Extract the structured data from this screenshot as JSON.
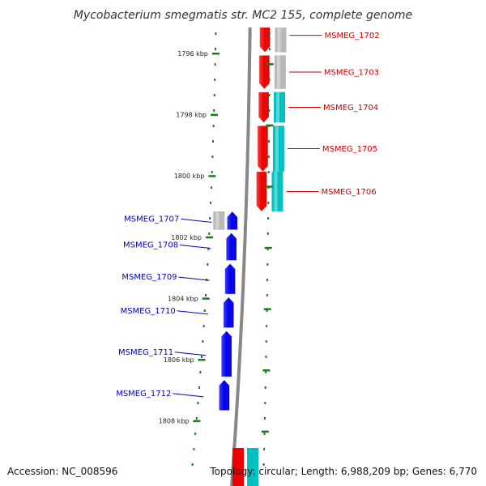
{
  "title": "Mycobacterium smegmatis str. MC2 155, complete genome",
  "footer": {
    "accession": "Accession: NC_008596",
    "summary": "Topology: circular; Length: 6,988,209 bp; Genes: 6,770"
  },
  "colors": {
    "background": "#ffffff",
    "backbone": "#888888",
    "ruler": "#1e7a1e",
    "forward_label": "#cc0000",
    "reverse_label": "#0000bb",
    "forward_gene": "#ee0000",
    "reverse_gene": "#0000ee",
    "cds_gray": "#b8b8b8",
    "cds_cyan": "#00c0c0"
  },
  "ticks": [
    {
      "label": "1796 kbp",
      "kbp": 1796
    },
    {
      "label": "1798 kbp",
      "kbp": 1798
    },
    {
      "label": "1800 kbp",
      "kbp": 1800
    },
    {
      "label": "1802 kbp",
      "kbp": 1802
    },
    {
      "label": "1804 kbp",
      "kbp": 1804
    },
    {
      "label": "1806 kbp",
      "kbp": 1806
    },
    {
      "label": "1808 kbp",
      "kbp": 1808
    }
  ],
  "genes": [
    {
      "name": "MSMEG_1702",
      "strand": "forward",
      "start_kbp": 1795.6,
      "end_kbp": 1796.7,
      "feature": "gray"
    },
    {
      "name": "MSMEG_1703",
      "strand": "forward",
      "start_kbp": 1796.8,
      "end_kbp": 1797.9,
      "feature": "gray"
    },
    {
      "name": "MSMEG_1704",
      "strand": "forward",
      "start_kbp": 1798.0,
      "end_kbp": 1799.0,
      "feature": "cyan"
    },
    {
      "name": "MSMEG_1705",
      "strand": "forward",
      "start_kbp": 1799.1,
      "end_kbp": 1800.6,
      "feature": "cyan"
    },
    {
      "name": "MSMEG_1706",
      "strand": "forward",
      "start_kbp": 1800.6,
      "end_kbp": 1801.9,
      "feature": "cyan"
    },
    {
      "name": "MSMEG_1707",
      "strand": "reverse",
      "start_kbp": 1801.9,
      "end_kbp": 1802.5,
      "feature": "gray"
    },
    {
      "name": "MSMEG_1708",
      "strand": "reverse",
      "start_kbp": 1802.6,
      "end_kbp": 1803.5,
      "feature": "none"
    },
    {
      "name": "MSMEG_1709",
      "strand": "reverse",
      "start_kbp": 1803.6,
      "end_kbp": 1804.6,
      "feature": "none"
    },
    {
      "name": "MSMEG_1710",
      "strand": "reverse",
      "start_kbp": 1804.7,
      "end_kbp": 1805.7,
      "feature": "none"
    },
    {
      "name": "MSMEG_1711",
      "strand": "reverse",
      "start_kbp": 1805.8,
      "end_kbp": 1807.3,
      "feature": "none"
    },
    {
      "name": "MSMEG_1712",
      "strand": "reverse",
      "start_kbp": 1807.4,
      "end_kbp": 1808.4,
      "feature": "none"
    }
  ]
}
